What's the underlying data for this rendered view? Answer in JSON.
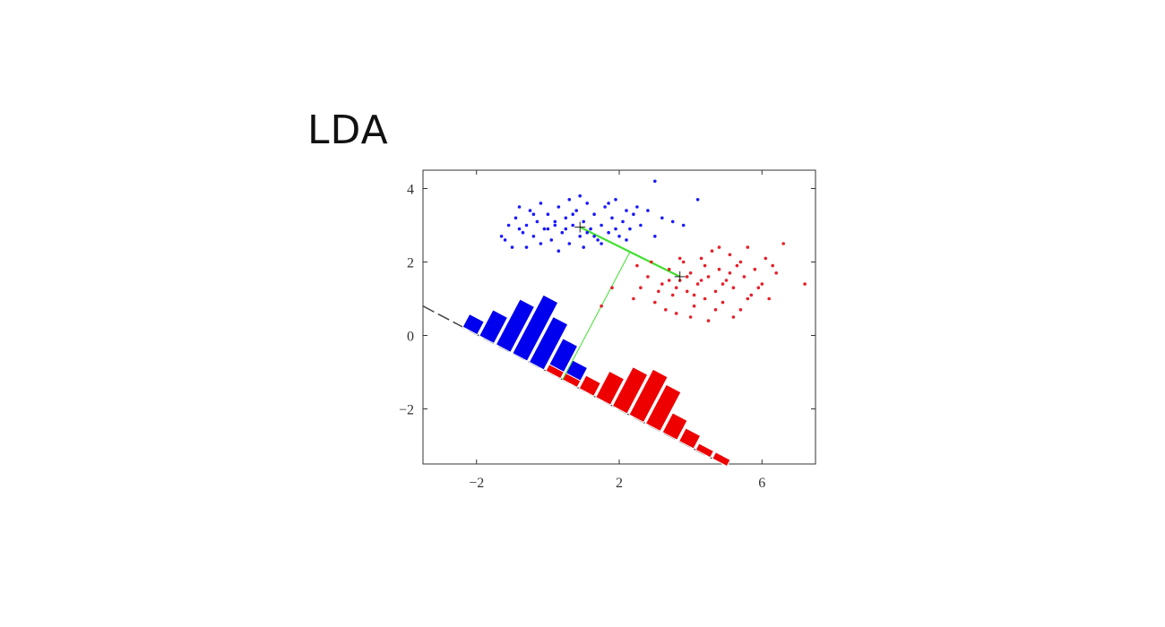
{
  "slide": {
    "title": "LDA"
  },
  "colors": {
    "class1": "#1a1aff",
    "class2": "#e8202a",
    "bar_blue": "#0000ee",
    "bar_red": "#ee0000",
    "mean_line": "#40e030",
    "projection_axis": "#444444",
    "axes": "#333333"
  },
  "chart_data": {
    "type": "scatter",
    "title": "",
    "xlabel": "",
    "ylabel": "",
    "xlim": [
      -3.5,
      7.5
    ],
    "ylim": [
      -3.5,
      4.5
    ],
    "grid": false,
    "x_ticks": [
      {
        "value": -2,
        "label": "−2"
      },
      {
        "value": 2,
        "label": "2"
      },
      {
        "value": 6,
        "label": "6"
      }
    ],
    "y_ticks": [
      {
        "value": 4,
        "label": "4"
      },
      {
        "value": 2,
        "label": "2"
      },
      {
        "value": 0,
        "label": "0"
      },
      {
        "value": -2,
        "label": "−2"
      }
    ],
    "series": [
      {
        "color": "#1a1aff",
        "marker": "dot",
        "points": [
          [
            -1.2,
            2.6
          ],
          [
            -1.3,
            2.7
          ],
          [
            -1.1,
            3.0
          ],
          [
            -0.9,
            3.2
          ],
          [
            -0.8,
            3.5
          ],
          [
            -0.7,
            2.8
          ],
          [
            -0.6,
            3.0
          ],
          [
            -0.5,
            3.4
          ],
          [
            -0.4,
            2.7
          ],
          [
            -0.3,
            3.1
          ],
          [
            -0.2,
            3.6
          ],
          [
            -0.1,
            2.9
          ],
          [
            0.0,
            3.3
          ],
          [
            0.1,
            2.6
          ],
          [
            0.2,
            3.0
          ],
          [
            0.3,
            3.5
          ],
          [
            0.4,
            2.8
          ],
          [
            0.5,
            3.2
          ],
          [
            0.6,
            2.5
          ],
          [
            0.7,
            3.0
          ],
          [
            0.8,
            3.4
          ],
          [
            0.9,
            2.7
          ],
          [
            1.0,
            3.1
          ],
          [
            1.1,
            3.6
          ],
          [
            1.2,
            2.9
          ],
          [
            1.3,
            3.3
          ],
          [
            1.4,
            2.6
          ],
          [
            1.5,
            3.0
          ],
          [
            1.6,
            3.5
          ],
          [
            1.7,
            2.8
          ],
          [
            1.8,
            3.2
          ],
          [
            1.9,
            3.7
          ],
          [
            2.0,
            2.7
          ],
          [
            2.1,
            3.1
          ],
          [
            2.2,
            3.4
          ],
          [
            2.3,
            2.9
          ],
          [
            2.4,
            3.3
          ],
          [
            2.6,
            3.0
          ],
          [
            2.8,
            3.4
          ],
          [
            3.0,
            2.7
          ],
          [
            3.2,
            3.2
          ],
          [
            3.5,
            3.1
          ],
          [
            3.8,
            3.0
          ],
          [
            4.2,
            3.7
          ],
          [
            3.0,
            4.2
          ],
          [
            -0.6,
            2.4
          ],
          [
            0.3,
            2.3
          ],
          [
            1.5,
            2.5
          ],
          [
            0.0,
            2.9
          ],
          [
            -0.2,
            2.5
          ],
          [
            0.6,
            3.7
          ],
          [
            1.0,
            2.4
          ],
          [
            2.5,
            3.5
          ],
          [
            -1.0,
            2.4
          ],
          [
            0.9,
            3.8
          ],
          [
            0.5,
            2.9
          ],
          [
            1.3,
            2.7
          ],
          [
            -0.4,
            3.3
          ],
          [
            2.2,
            2.6
          ],
          [
            1.7,
            3.6
          ],
          [
            0.2,
            3.1
          ],
          [
            -0.8,
            2.9
          ],
          [
            1.1,
            2.8
          ],
          [
            0.7,
            3.3
          ],
          [
            1.9,
            2.9
          ]
        ]
      },
      {
        "color": "#e8202a",
        "marker": "dot",
        "points": [
          [
            2.4,
            1.0
          ],
          [
            2.6,
            1.3
          ],
          [
            2.8,
            1.6
          ],
          [
            3.0,
            0.9
          ],
          [
            3.2,
            1.4
          ],
          [
            3.4,
            1.8
          ],
          [
            3.5,
            1.1
          ],
          [
            3.6,
            0.6
          ],
          [
            3.7,
            1.5
          ],
          [
            3.8,
            2.0
          ],
          [
            3.9,
            1.2
          ],
          [
            4.0,
            1.7
          ],
          [
            4.1,
            0.8
          ],
          [
            4.2,
            1.4
          ],
          [
            4.3,
            2.1
          ],
          [
            4.4,
            1.0
          ],
          [
            4.5,
            1.6
          ],
          [
            4.6,
            2.3
          ],
          [
            4.7,
            1.2
          ],
          [
            4.8,
            1.8
          ],
          [
            4.9,
            0.9
          ],
          [
            5.0,
            1.5
          ],
          [
            5.1,
            2.2
          ],
          [
            5.2,
            1.3
          ],
          [
            5.3,
            1.9
          ],
          [
            5.4,
            0.7
          ],
          [
            5.5,
            1.6
          ],
          [
            5.6,
            2.4
          ],
          [
            5.7,
            1.1
          ],
          [
            5.8,
            1.8
          ],
          [
            6.0,
            1.4
          ],
          [
            6.1,
            2.1
          ],
          [
            6.2,
            1.0
          ],
          [
            6.4,
            1.7
          ],
          [
            6.6,
            2.5
          ],
          [
            7.2,
            1.4
          ],
          [
            5.2,
            0.5
          ],
          [
            4.5,
            0.4
          ],
          [
            4.0,
            0.5
          ],
          [
            3.3,
            0.7
          ],
          [
            2.9,
            2.0
          ],
          [
            2.5,
            1.9
          ],
          [
            1.8,
            1.3
          ],
          [
            1.5,
            0.8
          ],
          [
            5.9,
            1.3
          ],
          [
            4.4,
            1.9
          ],
          [
            3.6,
            1.3
          ],
          [
            4.9,
            1.4
          ],
          [
            5.4,
            2.0
          ],
          [
            3.1,
            1.2
          ],
          [
            4.1,
            1.1
          ],
          [
            4.8,
            2.4
          ],
          [
            3.9,
            1.6
          ],
          [
            5.6,
            1.0
          ],
          [
            4.3,
            1.5
          ],
          [
            3.4,
            1.5
          ],
          [
            6.3,
            1.9
          ],
          [
            4.7,
            0.7
          ],
          [
            3.7,
            2.1
          ],
          [
            5.1,
            1.7
          ]
        ]
      }
    ],
    "means": [
      {
        "x": 0.9,
        "y": 2.95,
        "marker": "+"
      },
      {
        "x": 3.7,
        "y": 1.6,
        "marker": "+"
      }
    ],
    "projection_line": {
      "from": [
        -3.5,
        0.8
      ],
      "to": [
        4.6,
        -3.35
      ]
    },
    "histograms": [
      {
        "color": "#0000ee",
        "counts": [
          2,
          4,
          7,
          9,
          7,
          5,
          3,
          2,
          1
        ]
      },
      {
        "color": "#ee0000",
        "counts": [
          1,
          1,
          2,
          4,
          6,
          7,
          6,
          3,
          2,
          1,
          1
        ]
      }
    ]
  }
}
